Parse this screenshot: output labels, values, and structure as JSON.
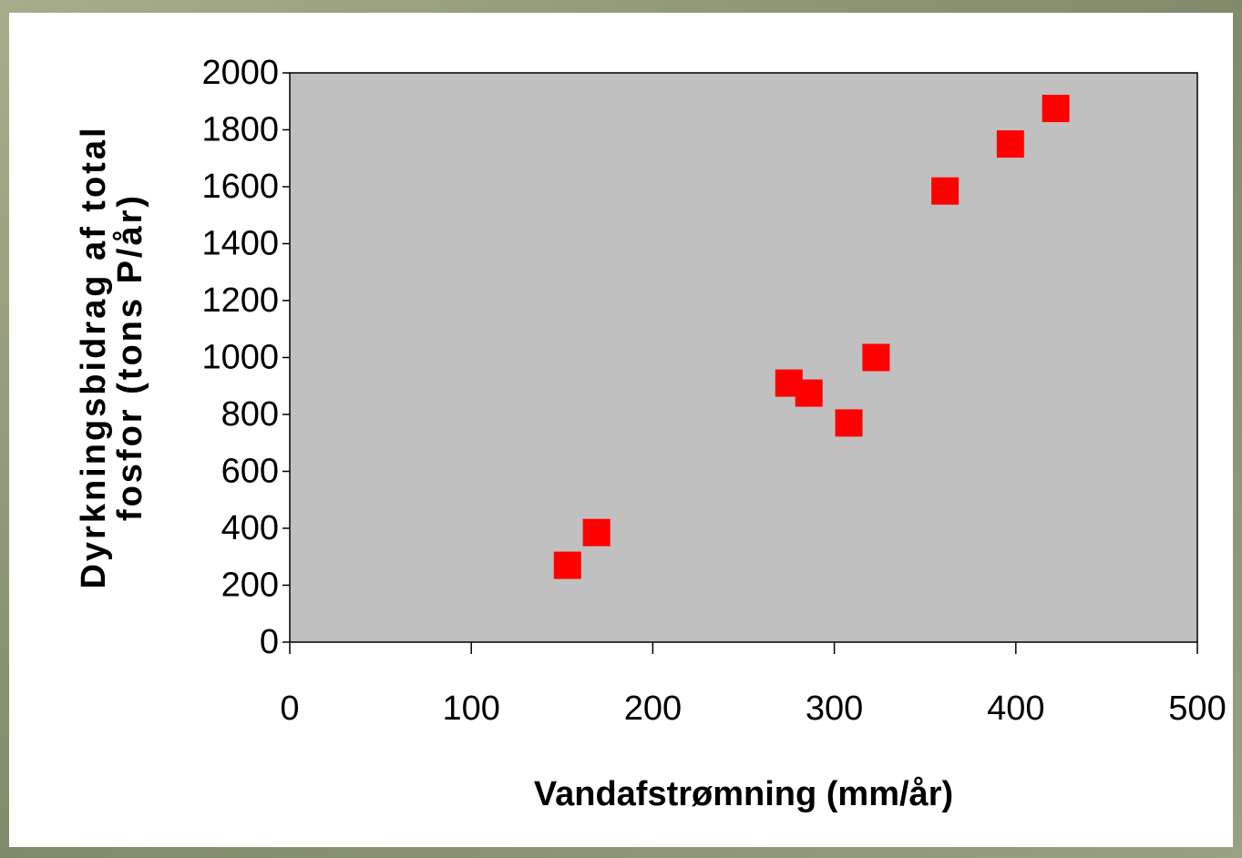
{
  "chart_data": {
    "type": "scatter",
    "xlabel": "Vandafstrømning (mm/år)",
    "ylabel": [
      "Dyrkningsbidrag af total",
      "fosfor (tons P/år)"
    ],
    "x": [
      153,
      169,
      275,
      286,
      308,
      323,
      361,
      397,
      422
    ],
    "values": [
      270,
      385,
      910,
      875,
      770,
      1000,
      1585,
      1750,
      1875
    ],
    "color": "#ff0000",
    "xlim": [
      0,
      500
    ],
    "xticks": [
      0,
      100,
      200,
      300,
      400,
      500
    ],
    "ylim": [
      0,
      2000
    ],
    "yticks": [
      0,
      200,
      400,
      600,
      800,
      1000,
      1200,
      1400,
      1600,
      1800,
      2000
    ],
    "plot_background": "#c0c0c0"
  }
}
